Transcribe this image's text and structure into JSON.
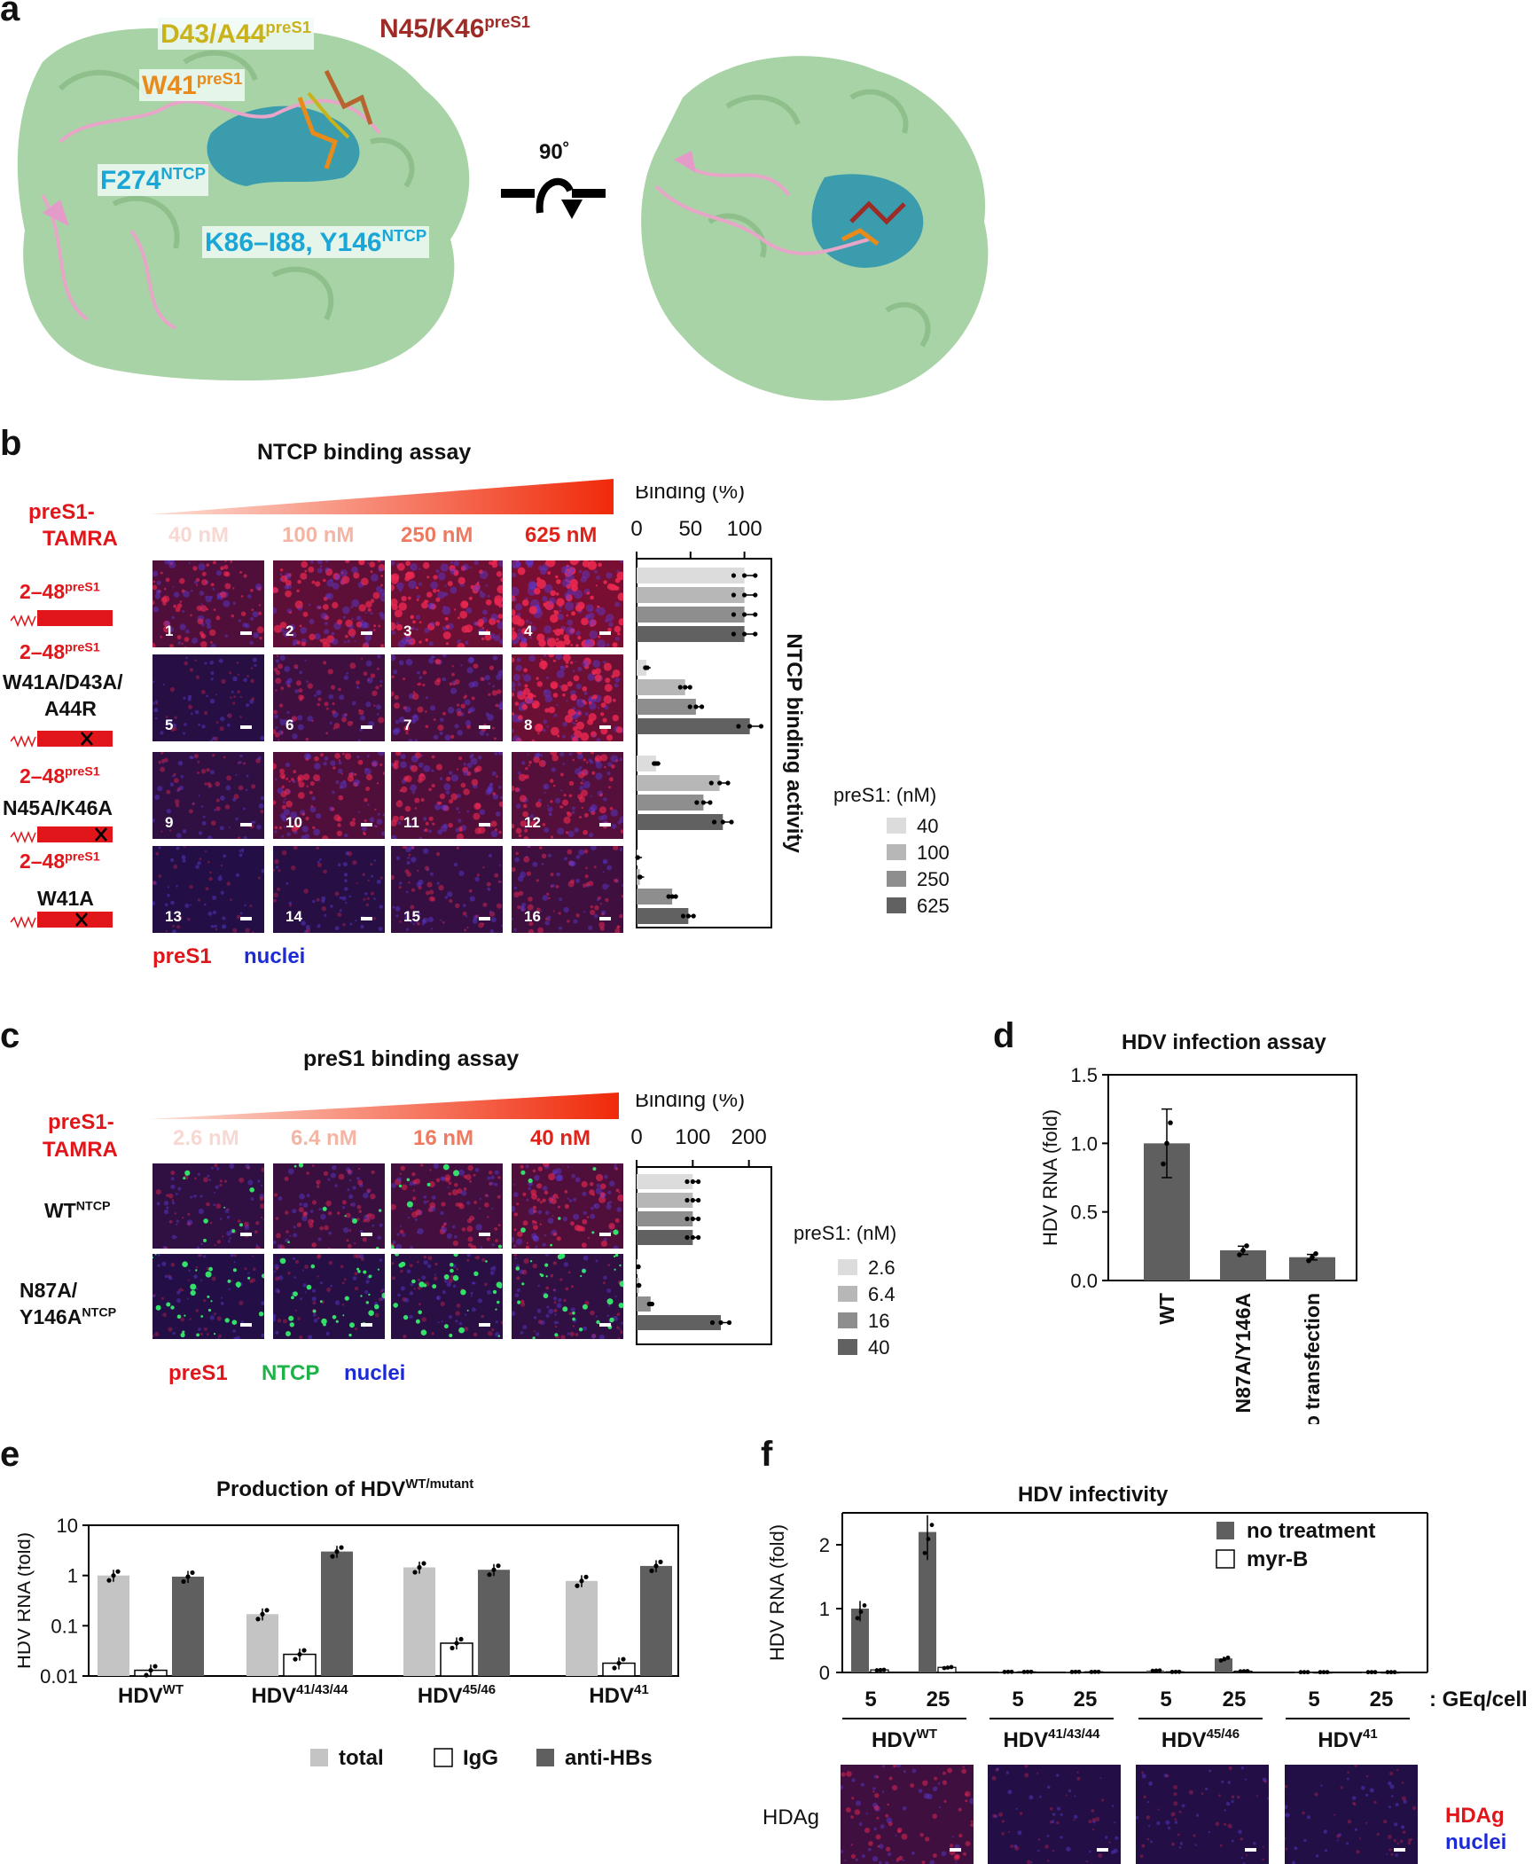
{
  "panels": {
    "a": "a",
    "b": "b",
    "c": "c",
    "d": "d",
    "e": "e",
    "f": "f"
  },
  "a": {
    "labels": {
      "d43": "D43/A44",
      "d43_sup": "preS1",
      "n45": "N45/K46",
      "n45_sup": "preS1",
      "w41": "W41",
      "w41_sup": "preS1",
      "f274": "F274",
      "f274_sup": "NTCP",
      "k86": "K86–I88, Y146",
      "k86_sup": "NTCP"
    },
    "rotation": "90˚",
    "colors": {
      "surface": "#a8d3a6",
      "pocket": "#3a9cad",
      "peptide": "#e7a6c8"
    }
  },
  "b": {
    "title": "NTCP binding assay",
    "probe": "preS1-\nTAMRA",
    "probe1": "preS1-",
    "probe2": "TAMRA",
    "concs": [
      "40 nM",
      "100 nM",
      "250 nM",
      "625 nM"
    ],
    "rows": [
      {
        "l1": "2–48",
        "sup": "preS1",
        "l2": "",
        "l3": ""
      },
      {
        "l1": "2–48",
        "sup": "preS1",
        "l2": "W41A/D43A/",
        "l3": "A44R"
      },
      {
        "l1": "2–48",
        "sup": "preS1",
        "l2": "N45A/K46A",
        "l3": ""
      },
      {
        "l1": "2–48",
        "sup": "preS1",
        "l2": "W41A",
        "l3": ""
      }
    ],
    "tile_numbers": [
      "1",
      "2",
      "3",
      "4",
      "5",
      "6",
      "7",
      "8",
      "9",
      "10",
      "11",
      "12",
      "13",
      "14",
      "15",
      "16"
    ],
    "stain_preS1": "preS1",
    "stain_nuclei": "nuclei",
    "legend_title": "preS1: (nM)",
    "legend_items": [
      "40",
      "100",
      "250",
      "625"
    ]
  },
  "c": {
    "title": "preS1 binding assay",
    "probe1": "preS1-",
    "probe2": "TAMRA",
    "concs": [
      "2.6 nM",
      "6.4 nM",
      "16 nM",
      "40 nM"
    ],
    "row1": "WT",
    "row1_sup": "NTCP",
    "row2a": "N87A/",
    "row2b": "Y146A",
    "row2_sup": "NTCP",
    "stain_preS1": "preS1",
    "stain_ntcp": "NTCP",
    "stain_nuclei": "nuclei",
    "legend_title": "preS1: (nM)",
    "legend_items": [
      "2.6",
      "6.4",
      "16",
      "40"
    ]
  },
  "d": {
    "title": "HDV infection assay"
  },
  "e": {
    "title": "Production of HDV",
    "title_sup": "WT/mutant",
    "legend": [
      "total",
      "IgG",
      "anti-HBs"
    ]
  },
  "f": {
    "title": "HDV infectivity",
    "legend": [
      "no treatment",
      "myr-B"
    ],
    "geq": ": GEq/cell",
    "groups": [
      {
        "n": "HDV",
        "s": "WT"
      },
      {
        "n": "HDV",
        "s": "41/43/44"
      },
      {
        "n": "HDV",
        "s": "45/46"
      },
      {
        "n": "HDV",
        "s": "41"
      }
    ],
    "row_label": "HDAg",
    "stain_hdag": "HDAg",
    "stain_nuclei": "nuclei"
  },
  "chart_data": [
    {
      "type": "bar",
      "id": "b-binding",
      "xlabel": "Binding (%)",
      "ylabel": "NTCP binding activity",
      "xlim": [
        0,
        125
      ],
      "ticks": [
        "0",
        "50",
        "100"
      ],
      "tick_values": [
        0,
        50,
        100
      ],
      "categories": [
        "2–48 preS1",
        "W41A/D43A/A44R",
        "N45A/K46A",
        "W41A"
      ],
      "series": [
        {
          "name": "40",
          "values": [
            100,
            9,
            18,
            1
          ]
        },
        {
          "name": "100",
          "values": [
            100,
            45,
            77,
            3
          ]
        },
        {
          "name": "250",
          "values": [
            100,
            55,
            62,
            33
          ]
        },
        {
          "name": "625",
          "values": [
            100,
            105,
            80,
            48
          ]
        }
      ],
      "colors": [
        "#dcdcdc",
        "#b7b7b7",
        "#8e8e8e",
        "#616161"
      ]
    },
    {
      "type": "bar",
      "id": "c-binding",
      "xlabel": "Binding (%)",
      "xlim": [
        0,
        240
      ],
      "ticks": [
        "0",
        "100",
        "200"
      ],
      "tick_values": [
        0,
        100,
        200
      ],
      "categories": [
        "WT NTCP",
        "N87A/Y146A NTCP"
      ],
      "series": [
        {
          "name": "2.6",
          "values": [
            100,
            3
          ]
        },
        {
          "name": "6.4",
          "values": [
            100,
            4
          ]
        },
        {
          "name": "16",
          "values": [
            100,
            25
          ]
        },
        {
          "name": "40",
          "values": [
            100,
            150
          ]
        }
      ],
      "colors": [
        "#dcdcdc",
        "#b7b7b7",
        "#8e8e8e",
        "#616161"
      ]
    },
    {
      "type": "bar",
      "id": "d-infection",
      "ylabel": "HDV RNA (fold)",
      "ylim": [
        0,
        1.5
      ],
      "ticks": [
        "0.0",
        "0.5",
        "1.0",
        "1.5"
      ],
      "tick_values": [
        0,
        0.5,
        1,
        1.5
      ],
      "categories": [
        "WT",
        "N87A/Y146A",
        "No transfection"
      ],
      "values": [
        1.0,
        0.22,
        0.17
      ],
      "errors": [
        0.25,
        0.03,
        0.02
      ]
    },
    {
      "type": "bar",
      "id": "e-production",
      "ylabel": "HDV RNA (fold)",
      "log_scale": true,
      "ylim": [
        0.01,
        10
      ],
      "ticks": [
        "10",
        "1",
        "0.1",
        "0.01"
      ],
      "tick_values": [
        10,
        1,
        0.1,
        0.01
      ],
      "categories": [
        "HDV WT",
        "HDV 41/43/44",
        "HDV 45/46",
        "HDV 41"
      ],
      "series": [
        {
          "name": "total",
          "values": [
            1.0,
            0.17,
            1.45,
            0.78
          ]
        },
        {
          "name": "IgG",
          "values": [
            0.013,
            0.027,
            0.045,
            0.018
          ]
        },
        {
          "name": "anti-HBs",
          "values": [
            0.95,
            3.0,
            1.3,
            1.55
          ]
        }
      ],
      "colors": [
        "#c4c4c4",
        "#ffffff",
        "#5f5f5f"
      ]
    },
    {
      "type": "bar",
      "id": "f-infectivity",
      "ylabel": "HDV RNA (fold)",
      "ylim": [
        0,
        2.5
      ],
      "ticks": [
        "0",
        "1",
        "2"
      ],
      "tick_values": [
        0,
        1,
        2
      ],
      "x": [
        "5",
        "25",
        "5",
        "25",
        "5",
        "25",
        "5",
        "25"
      ],
      "series": [
        {
          "name": "no treatment",
          "values": [
            1.0,
            2.2,
            0.01,
            0.01,
            0.03,
            0.22,
            0.005,
            0.005
          ]
        },
        {
          "name": "myr-B",
          "values": [
            0.04,
            0.08,
            0.01,
            0.01,
            0.01,
            0.02,
            0.005,
            0.005
          ]
        }
      ],
      "colors": [
        "#5f5f5f",
        "#ffffff"
      ]
    }
  ]
}
